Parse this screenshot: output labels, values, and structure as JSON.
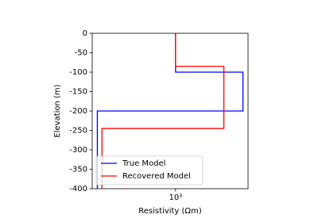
{
  "chart_data": {
    "type": "line",
    "xlabel": "Resistivity (Ωm)",
    "ylabel": "Elevation (m)",
    "xscale": "log",
    "xlim": [
      180,
      4440
    ],
    "xticks": [
      {
        "value": 1000,
        "label": "10³"
      }
    ],
    "ylim": [
      -400,
      0
    ],
    "yticks": [
      0,
      -50,
      -100,
      -150,
      -200,
      -250,
      -300,
      -350,
      -400
    ],
    "legend": "lower left",
    "series": [
      {
        "name": "True Model",
        "color": "#0000ff",
        "x": [
          1000,
          1000,
          4000,
          4000,
          200,
          200
        ],
        "values": [
          0,
          -100,
          -100,
          -200,
          -200,
          -400
        ]
      },
      {
        "name": "Recovered Model",
        "color": "#ff0000",
        "x": [
          1000,
          1000,
          2700,
          2700,
          220,
          220
        ],
        "values": [
          0,
          -85,
          -85,
          -245,
          -245,
          -400
        ]
      }
    ]
  }
}
